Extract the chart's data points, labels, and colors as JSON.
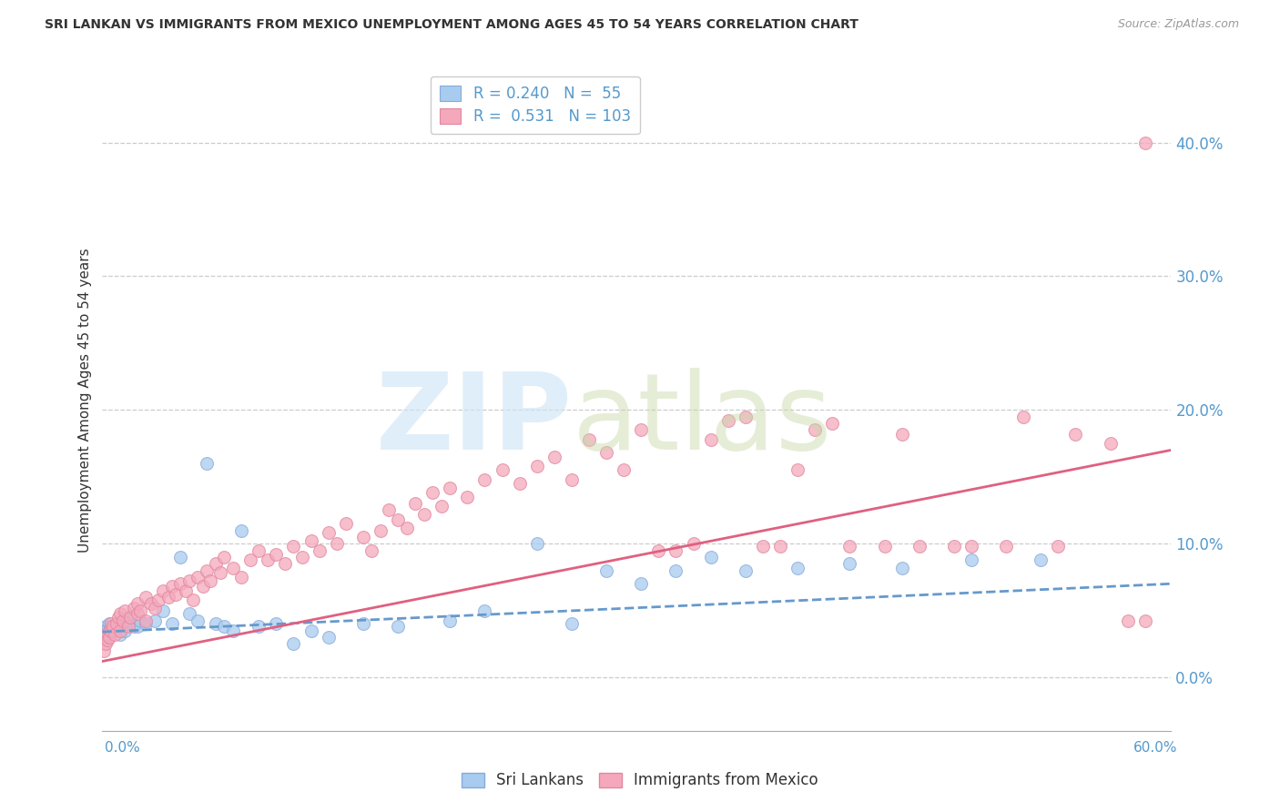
{
  "title": "SRI LANKAN VS IMMIGRANTS FROM MEXICO UNEMPLOYMENT AMONG AGES 45 TO 54 YEARS CORRELATION CHART",
  "source": "Source: ZipAtlas.com",
  "ylabel": "Unemployment Among Ages 45 to 54 years",
  "right_ytick_vals": [
    0.0,
    0.1,
    0.2,
    0.3,
    0.4
  ],
  "right_ytick_labels": [
    "0.0%",
    "10.0%",
    "20.0%",
    "30.0%",
    "40.0%"
  ],
  "xmin": 0.0,
  "xmax": 0.615,
  "ymin": -0.04,
  "ymax": 0.455,
  "sri_lankan_color": "#a8ccf0",
  "sri_lankan_edge": "#88aad8",
  "mexico_color": "#f5a8bc",
  "mexico_edge": "#e088a0",
  "sri_lankan_line_color": "#6699cc",
  "mexico_line_color": "#e06080",
  "sri_lankan_R": 0.24,
  "sri_lankan_N": 55,
  "mexico_R": 0.531,
  "mexico_N": 103,
  "legend_label1": "Sri Lankans",
  "legend_label2": "Immigrants from Mexico",
  "text_color": "#333333",
  "axis_label_color": "#5599cc",
  "grid_color": "#cccccc",
  "background_color": "#ffffff",
  "sri_x": [
    0.001,
    0.002,
    0.002,
    0.003,
    0.003,
    0.004,
    0.004,
    0.005,
    0.005,
    0.006,
    0.007,
    0.008,
    0.009,
    0.01,
    0.01,
    0.012,
    0.013,
    0.015,
    0.016,
    0.018,
    0.02,
    0.022,
    0.025,
    0.03,
    0.035,
    0.04,
    0.045,
    0.05,
    0.055,
    0.06,
    0.065,
    0.07,
    0.075,
    0.08,
    0.09,
    0.1,
    0.11,
    0.12,
    0.13,
    0.15,
    0.17,
    0.2,
    0.22,
    0.25,
    0.27,
    0.29,
    0.31,
    0.33,
    0.35,
    0.37,
    0.4,
    0.43,
    0.46,
    0.5,
    0.54
  ],
  "sri_y": [
    0.034,
    0.038,
    0.03,
    0.036,
    0.032,
    0.035,
    0.04,
    0.033,
    0.038,
    0.036,
    0.035,
    0.037,
    0.04,
    0.032,
    0.042,
    0.038,
    0.035,
    0.04,
    0.045,
    0.038,
    0.038,
    0.042,
    0.04,
    0.042,
    0.05,
    0.04,
    0.09,
    0.048,
    0.042,
    0.16,
    0.04,
    0.038,
    0.035,
    0.11,
    0.038,
    0.04,
    0.025,
    0.035,
    0.03,
    0.04,
    0.038,
    0.042,
    0.05,
    0.1,
    0.04,
    0.08,
    0.07,
    0.08,
    0.09,
    0.08,
    0.082,
    0.085,
    0.082,
    0.088,
    0.088
  ],
  "mex_x": [
    0.001,
    0.002,
    0.002,
    0.003,
    0.004,
    0.004,
    0.005,
    0.005,
    0.006,
    0.007,
    0.008,
    0.009,
    0.01,
    0.01,
    0.012,
    0.013,
    0.015,
    0.016,
    0.018,
    0.02,
    0.02,
    0.022,
    0.025,
    0.025,
    0.028,
    0.03,
    0.032,
    0.035,
    0.038,
    0.04,
    0.042,
    0.045,
    0.048,
    0.05,
    0.052,
    0.055,
    0.058,
    0.06,
    0.062,
    0.065,
    0.068,
    0.07,
    0.075,
    0.08,
    0.085,
    0.09,
    0.095,
    0.1,
    0.105,
    0.11,
    0.115,
    0.12,
    0.125,
    0.13,
    0.135,
    0.14,
    0.15,
    0.155,
    0.16,
    0.165,
    0.17,
    0.175,
    0.18,
    0.185,
    0.19,
    0.195,
    0.2,
    0.21,
    0.22,
    0.23,
    0.24,
    0.25,
    0.26,
    0.27,
    0.28,
    0.29,
    0.3,
    0.31,
    0.32,
    0.33,
    0.34,
    0.35,
    0.36,
    0.37,
    0.38,
    0.39,
    0.4,
    0.41,
    0.42,
    0.43,
    0.45,
    0.46,
    0.47,
    0.49,
    0.5,
    0.52,
    0.53,
    0.55,
    0.56,
    0.58,
    0.59,
    0.6,
    0.6
  ],
  "mex_y": [
    0.02,
    0.025,
    0.032,
    0.028,
    0.035,
    0.03,
    0.04,
    0.035,
    0.038,
    0.032,
    0.04,
    0.045,
    0.035,
    0.048,
    0.042,
    0.05,
    0.038,
    0.045,
    0.052,
    0.048,
    0.055,
    0.05,
    0.042,
    0.06,
    0.055,
    0.052,
    0.058,
    0.065,
    0.06,
    0.068,
    0.062,
    0.07,
    0.065,
    0.072,
    0.058,
    0.075,
    0.068,
    0.08,
    0.072,
    0.085,
    0.078,
    0.09,
    0.082,
    0.075,
    0.088,
    0.095,
    0.088,
    0.092,
    0.085,
    0.098,
    0.09,
    0.102,
    0.095,
    0.108,
    0.1,
    0.115,
    0.105,
    0.095,
    0.11,
    0.125,
    0.118,
    0.112,
    0.13,
    0.122,
    0.138,
    0.128,
    0.142,
    0.135,
    0.148,
    0.155,
    0.145,
    0.158,
    0.165,
    0.148,
    0.178,
    0.168,
    0.155,
    0.185,
    0.095,
    0.095,
    0.1,
    0.178,
    0.192,
    0.195,
    0.098,
    0.098,
    0.155,
    0.185,
    0.19,
    0.098,
    0.098,
    0.182,
    0.098,
    0.098,
    0.098,
    0.098,
    0.195,
    0.098,
    0.182,
    0.175,
    0.042,
    0.042,
    0.4
  ]
}
